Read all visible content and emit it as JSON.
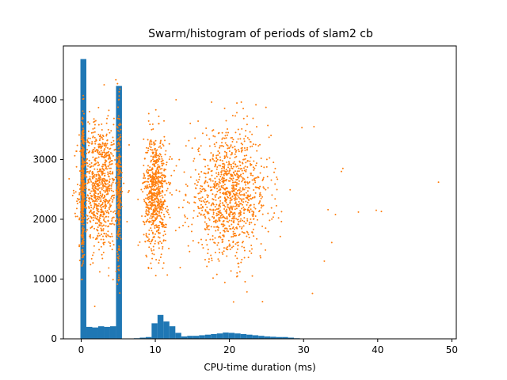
{
  "chart_data": {
    "type": "histogram+scatter",
    "title": "Swarm/histogram of periods of slam2 cb",
    "xlabel": "CPU-time duration (ms)",
    "ylabel": "",
    "xlim": [
      -2.4,
      50.6
    ],
    "ylim": [
      0,
      4900
    ],
    "xticks": [
      0,
      10,
      20,
      30,
      40,
      50
    ],
    "yticks": [
      0,
      1000,
      2000,
      3000,
      4000
    ],
    "grid": false,
    "colors": {
      "histogram": "#1f77b4",
      "scatter": "#ff7f0e"
    },
    "histogram": {
      "bin_width": 0.8,
      "bins": [
        [
          -0.1,
          4680
        ],
        [
          0.7,
          200
        ],
        [
          1.5,
          190
        ],
        [
          2.3,
          210
        ],
        [
          3.1,
          200
        ],
        [
          3.9,
          210
        ],
        [
          4.7,
          4230
        ],
        [
          7.1,
          10
        ],
        [
          7.9,
          20
        ],
        [
          8.7,
          30
        ],
        [
          9.5,
          260
        ],
        [
          10.3,
          400
        ],
        [
          11.1,
          290
        ],
        [
          11.9,
          210
        ],
        [
          12.7,
          100
        ],
        [
          13.5,
          40
        ],
        [
          14.3,
          50
        ],
        [
          15.1,
          50
        ],
        [
          15.9,
          60
        ],
        [
          16.7,
          70
        ],
        [
          17.5,
          80
        ],
        [
          18.3,
          90
        ],
        [
          19.1,
          105
        ],
        [
          19.9,
          100
        ],
        [
          20.7,
          90
        ],
        [
          21.5,
          80
        ],
        [
          22.3,
          70
        ],
        [
          23.1,
          60
        ],
        [
          23.9,
          50
        ],
        [
          24.7,
          40
        ],
        [
          25.5,
          35
        ],
        [
          26.3,
          30
        ],
        [
          27.1,
          30
        ],
        [
          27.9,
          20
        ],
        [
          28.7,
          10
        ],
        [
          29.5,
          5
        ],
        [
          30.3,
          5
        ],
        [
          31.1,
          5
        ]
      ]
    },
    "scatter_clusters": [
      {
        "x_center": 0.2,
        "x_spread": 0.15,
        "y_mean": 2500,
        "y_sd": 650,
        "count": 350
      },
      {
        "x_center": 2.5,
        "x_spread": 2.2,
        "y_mean": 2550,
        "y_sd": 520,
        "count": 850
      },
      {
        "x_center": 5.1,
        "x_spread": 0.2,
        "y_mean": 2500,
        "y_sd": 650,
        "count": 260
      },
      {
        "x_center": 10.0,
        "x_spread": 1.3,
        "y_mean": 2450,
        "y_sd": 480,
        "count": 700
      },
      {
        "x_center": 20.0,
        "x_spread": 4.5,
        "y_mean": 2400,
        "y_sd": 520,
        "count": 1100
      }
    ],
    "scatter_outliers": [
      {
        "x": 48.2,
        "y": 2620
      },
      {
        "x": 40.5,
        "y": 2130
      },
      {
        "x": 39.8,
        "y": 2150
      },
      {
        "x": 37.4,
        "y": 2120
      },
      {
        "x": 35.3,
        "y": 2850
      },
      {
        "x": 35.1,
        "y": 2800
      },
      {
        "x": 33.3,
        "y": 2160
      },
      {
        "x": 34.3,
        "y": 2080
      },
      {
        "x": 31.2,
        "y": 760
      },
      {
        "x": 31.4,
        "y": 3550
      },
      {
        "x": 32.8,
        "y": 1300
      },
      {
        "x": 33.8,
        "y": 1610
      },
      {
        "x": 3.1,
        "y": 4250
      },
      {
        "x": 4.9,
        "y": 4270
      },
      {
        "x": 12.8,
        "y": 4000
      },
      {
        "x": 21.6,
        "y": 3960
      }
    ]
  }
}
